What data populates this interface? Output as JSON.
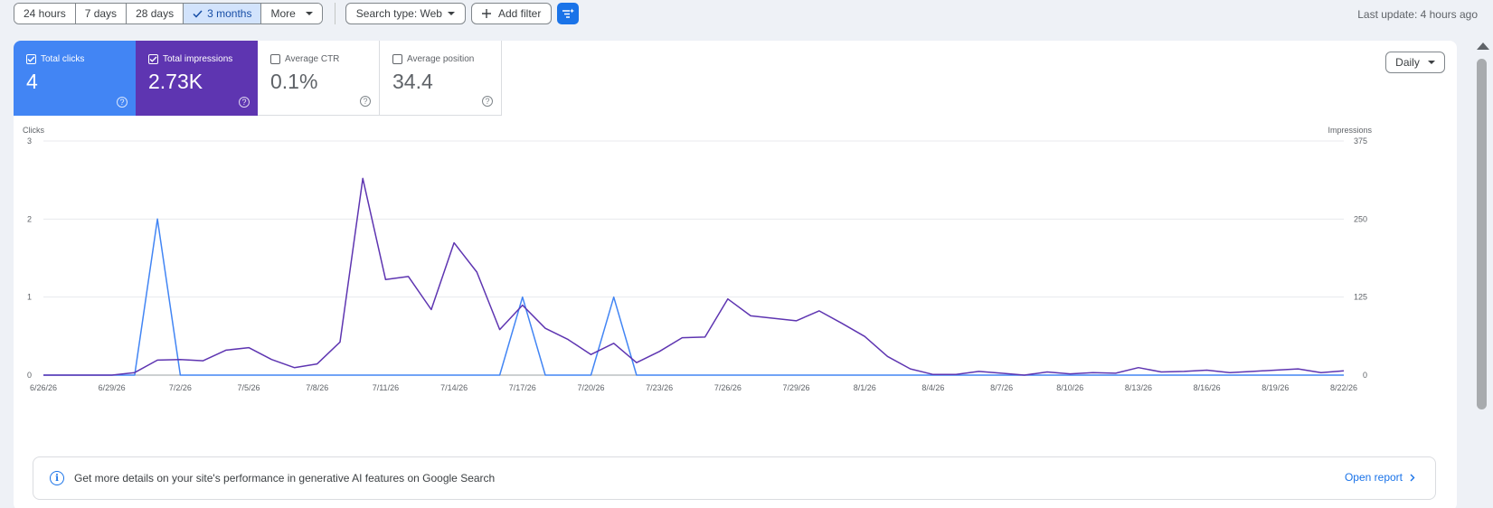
{
  "toolbar": {
    "ranges": [
      "24 hours",
      "7 days",
      "28 days",
      "3 months",
      "More"
    ],
    "active_range": "3 months",
    "search_type": "Search type: Web",
    "add_filter": "Add filter",
    "last_update": "Last update: 4 hours ago"
  },
  "metrics": [
    {
      "label": "Total clicks",
      "value": "4",
      "checked": true,
      "color": "#4285f4"
    },
    {
      "label": "Total impressions",
      "value": "2.73K",
      "checked": true,
      "color": "#5e35b1"
    },
    {
      "label": "Average CTR",
      "value": "0.1%",
      "checked": false
    },
    {
      "label": "Average position",
      "value": "34.4",
      "checked": false
    }
  ],
  "granularity": "Daily",
  "chart_data": {
    "type": "line",
    "left_axis": {
      "label": "Clicks",
      "ticks": [
        0,
        1,
        2,
        3
      ],
      "range": [
        0,
        3
      ]
    },
    "right_axis": {
      "label": "Impressions",
      "ticks": [
        0,
        125,
        250,
        375
      ],
      "range": [
        0,
        375
      ]
    },
    "x_tick_labels": [
      "6/26/26",
      "6/29/26",
      "7/2/26",
      "7/5/26",
      "7/8/26",
      "7/11/26",
      "7/14/26",
      "7/17/26",
      "7/20/26",
      "7/23/26",
      "7/26/26",
      "7/29/26",
      "8/1/26",
      "8/4/26",
      "8/7/26",
      "8/10/26",
      "8/13/26",
      "8/16/26",
      "8/19/26",
      "8/22/26"
    ],
    "series": [
      {
        "name": "Total clicks",
        "axis": "left",
        "color": "#4285f4",
        "values": [
          0,
          0,
          0,
          0,
          0,
          2,
          0,
          0,
          0,
          0,
          0,
          0,
          0,
          0,
          0,
          0,
          0,
          0,
          0,
          0,
          0,
          1,
          0,
          0,
          0,
          1,
          0,
          0,
          0,
          0,
          0,
          0,
          0,
          0,
          0,
          0,
          0,
          0,
          0,
          0,
          0,
          0,
          0,
          0,
          0,
          0,
          0,
          0,
          0,
          0,
          0,
          0,
          0,
          0,
          0,
          0,
          0,
          0
        ]
      },
      {
        "name": "Total impressions",
        "axis": "right",
        "color": "#5e35b1",
        "values": [
          0,
          0,
          0,
          0,
          4,
          24,
          25,
          23,
          40,
          44,
          25,
          12,
          18,
          53,
          315,
          153,
          158,
          105,
          212,
          165,
          73,
          112,
          75,
          57,
          33,
          51,
          20,
          38,
          60,
          61,
          122,
          95,
          91,
          87,
          103,
          83,
          62,
          30,
          10,
          1,
          1,
          6,
          3,
          0,
          5,
          2,
          4,
          3,
          12,
          5,
          6,
          8,
          4,
          6,
          8,
          10,
          4,
          7
        ]
      }
    ]
  },
  "banner": {
    "text": "Get more details on your site's performance in generative AI features on Google Search",
    "link": "Open report"
  }
}
